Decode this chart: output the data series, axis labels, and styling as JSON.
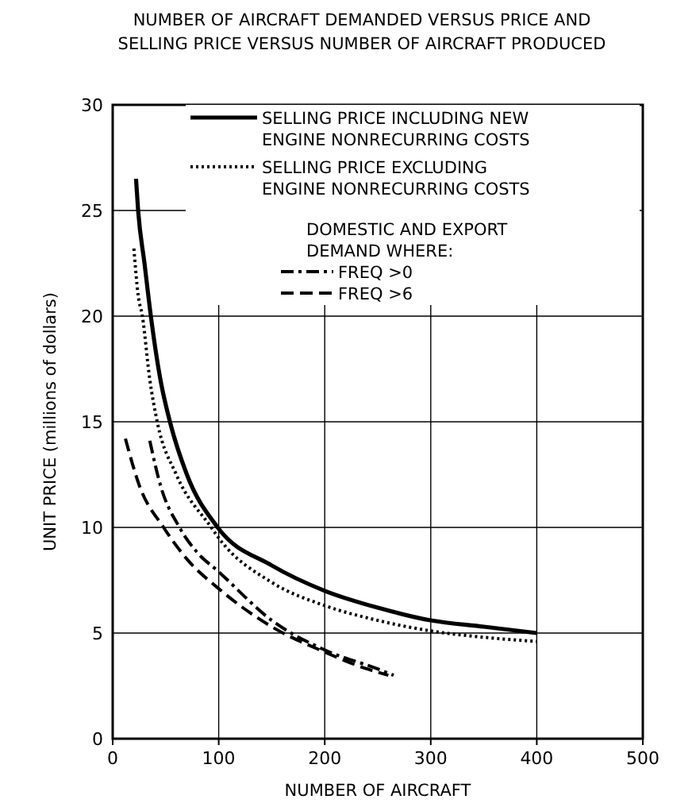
{
  "chart_data": {
    "type": "line",
    "title": "NUMBER OF AIRCRAFT DEMANDED VERSUS PRICE AND SELLING PRICE VERSUS NUMBER OF AIRCRAFT PRODUCED",
    "xlabel": "NUMBER OF AIRCRAFT",
    "ylabel": "UNIT PRICE (millions of dollars)",
    "xlim": [
      0,
      500
    ],
    "ylim": [
      0,
      30
    ],
    "xticks": [
      0,
      100,
      200,
      300,
      400,
      500
    ],
    "yticks": [
      0,
      5,
      10,
      15,
      20,
      25,
      30
    ],
    "grid": true,
    "legend": "top right",
    "annotations": [
      "DOMESTIC AND EXPORT DEMAND WHERE:"
    ],
    "series": [
      {
        "name": "SELLING PRICE INCLUDING NEW ENGINE NONRECURRING COSTS",
        "color": "#000000",
        "line_style": "solid",
        "x": [
          22,
          24,
          30,
          36,
          45,
          54,
          70,
          99,
          150,
          200,
          250,
          300,
          350,
          400
        ],
        "values": [
          26.5,
          25,
          22.5,
          20,
          17,
          15,
          12.5,
          10,
          8.2,
          7,
          6.2,
          5.6,
          5.3,
          5.0
        ]
      },
      {
        "name": "SELLING PRICE EXCLUDING ENGINE NONRECURRING COSTS",
        "color": "#000000",
        "line_style": "dotted",
        "x": [
          20,
          24,
          28,
          35,
          42,
          60,
          93,
          100,
          150,
          200,
          250,
          300,
          350,
          400
        ],
        "values": [
          23.2,
          21,
          20,
          17,
          15,
          12.5,
          10,
          9.5,
          7.4,
          6.3,
          5.6,
          5.1,
          4.8,
          4.6
        ]
      },
      {
        "name": "FREQ >0",
        "color": "#000000",
        "line_style": "dashdot",
        "x": [
          35,
          45,
          63,
          80,
          100,
          150,
          200,
          250,
          265
        ],
        "values": [
          14.1,
          12,
          10,
          8.8,
          7.9,
          5.6,
          4.2,
          3.3,
          3.0
        ]
      },
      {
        "name": "FREQ >6",
        "color": "#000000",
        "line_style": "dashed",
        "x": [
          12,
          25,
          48,
          70,
          100,
          150,
          200,
          240,
          260
        ],
        "values": [
          14.2,
          12,
          10,
          8.5,
          7.1,
          5.3,
          4.1,
          3.3,
          3.0
        ]
      }
    ]
  }
}
